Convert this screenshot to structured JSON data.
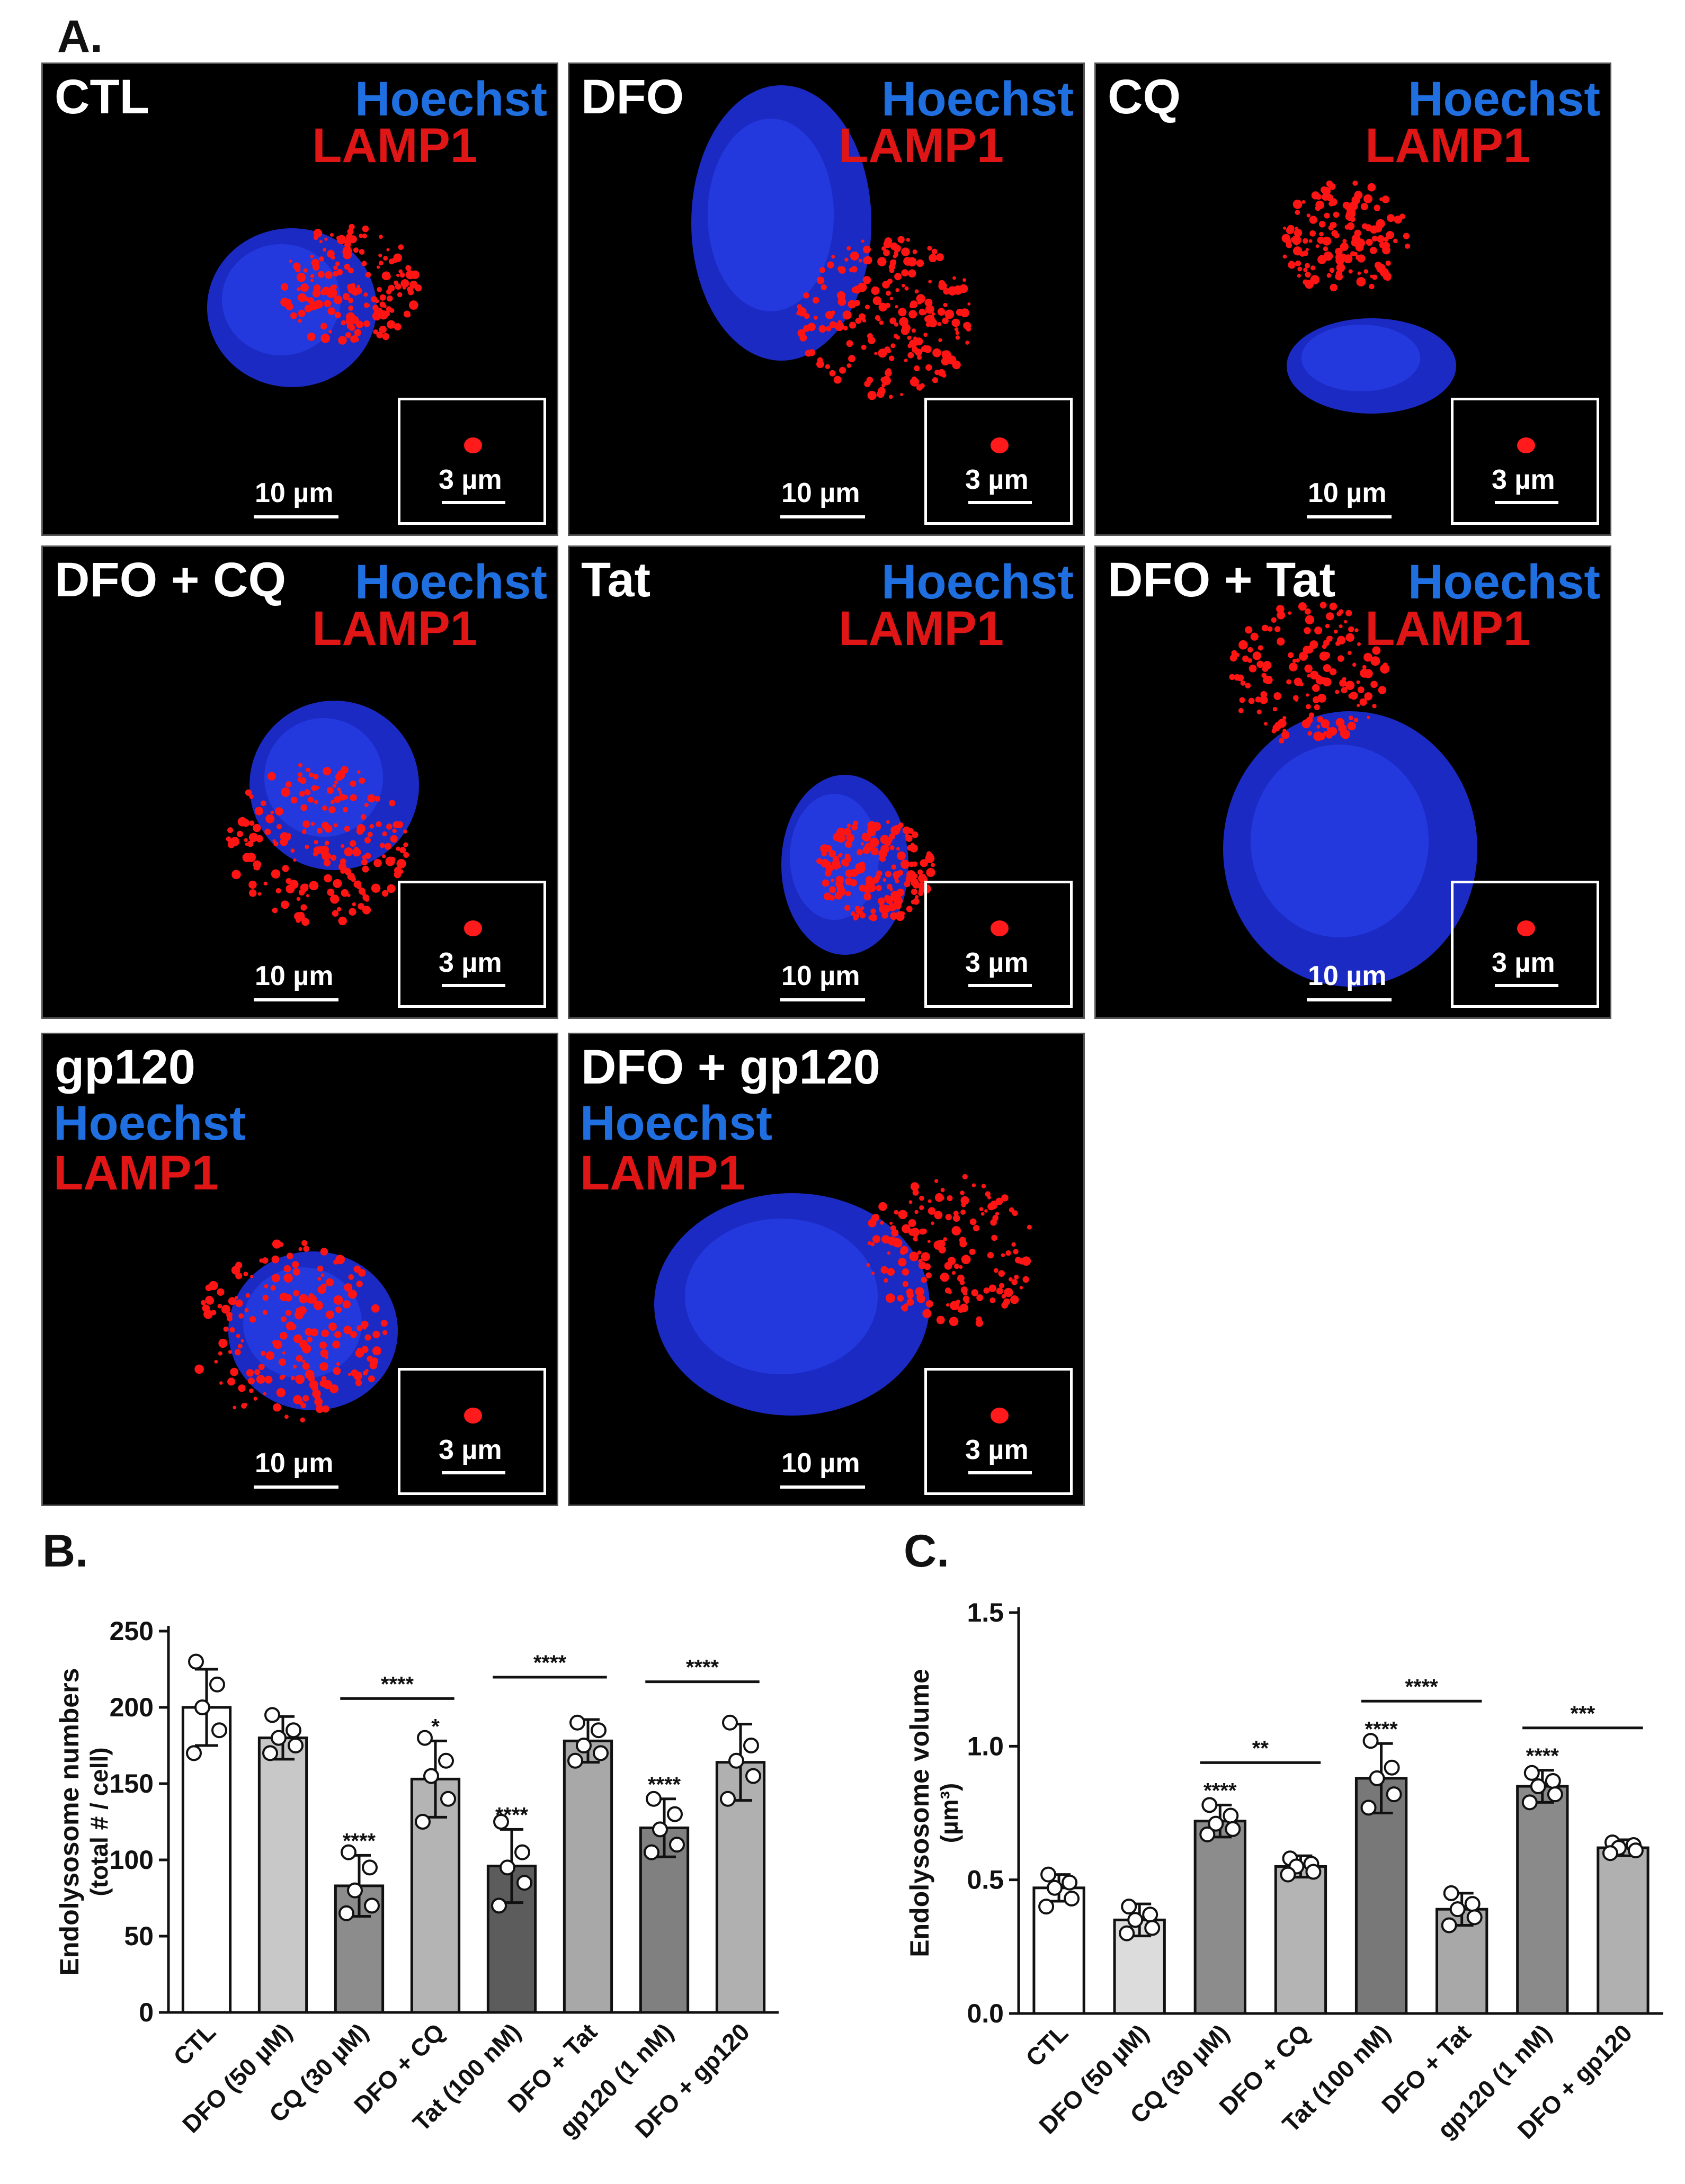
{
  "panel_letters": {
    "a": "A.",
    "b": "B.",
    "c": "C."
  },
  "micrographs": [
    {
      "title": "CTL",
      "stain_top": "Hoechst",
      "stain_bottom": "LAMP1",
      "scale_main": "10 µm",
      "scale_inset": "3 µm"
    },
    {
      "title": "DFO",
      "stain_top": "Hoechst",
      "stain_bottom": "LAMP1",
      "scale_main": "10 µm",
      "scale_inset": "3 µm"
    },
    {
      "title": "CQ",
      "stain_top": "Hoechst",
      "stain_bottom": "LAMP1",
      "scale_main": "10 µm",
      "scale_inset": "3 µm"
    },
    {
      "title": "DFO + CQ",
      "stain_top": "Hoechst",
      "stain_bottom": "LAMP1",
      "scale_main": "10 µm",
      "scale_inset": "3 µm"
    },
    {
      "title": "Tat",
      "stain_top": "Hoechst",
      "stain_bottom": "LAMP1",
      "scale_main": "10 µm",
      "scale_inset": "3 µm"
    },
    {
      "title": "DFO + Tat",
      "stain_top": "Hoechst",
      "stain_bottom": "LAMP1",
      "scale_main": "10 µm",
      "scale_inset": "3 µm"
    },
    {
      "title": "gp120",
      "stain_top": "Hoechst",
      "stain_bottom": "LAMP1",
      "scale_main": "10 µm",
      "scale_inset": "3 µm"
    },
    {
      "title": "DFO + gp120",
      "stain_top": "Hoechst",
      "stain_bottom": "LAMP1",
      "scale_main": "10 µm",
      "scale_inset": "3 µm"
    }
  ],
  "colors": {
    "nucleus": "#1e2fd8",
    "lamp1": "#ff1414",
    "bar_white": "#ffffff",
    "bar_light": "#c8c8c8",
    "bar_mid": "#8c8c8c",
    "bar_dark": "#5c5c5c"
  },
  "chart_data": [
    {
      "type": "bar",
      "ylabel": "Endolysosome numbers",
      "ylabel2": "(total # / cell)",
      "ylim": [
        0,
        250
      ],
      "yticks": [
        "0",
        "50",
        "100",
        "150",
        "200",
        "250"
      ],
      "categories": [
        "CTL",
        "DFO (50 µM)",
        "CQ (30 µM)",
        "DFO + CQ",
        "Tat (100 nM)",
        "DFO + Tat",
        "gp120 (1 nM)",
        "DFO + gp120"
      ],
      "values": [
        200,
        180,
        83,
        153,
        96,
        178,
        121,
        164
      ],
      "errors": [
        25,
        14,
        20,
        25,
        24,
        14,
        19,
        25
      ],
      "bar_colors": [
        "#ffffff",
        "#c8c8c8",
        "#8c8c8c",
        "#b4b4b4",
        "#5c5c5c",
        "#a8a8a8",
        "#808080",
        "#b0b0b0"
      ],
      "points": [
        [
          230,
          215,
          200,
          185,
          170
        ],
        [
          195,
          185,
          180,
          175,
          170
        ],
        [
          105,
          95,
          80,
          70,
          65
        ],
        [
          180,
          165,
          155,
          140,
          125
        ],
        [
          125,
          105,
          95,
          85,
          70
        ],
        [
          190,
          185,
          175,
          170,
          165
        ],
        [
          140,
          130,
          120,
          110,
          105
        ],
        [
          190,
          175,
          165,
          155,
          140
        ]
      ],
      "star_labels": [
        "",
        "",
        "****",
        "*",
        "****",
        "",
        "****",
        ""
      ],
      "brackets": [
        {
          "from": 2,
          "to": 3,
          "label": "****"
        },
        {
          "from": 4,
          "to": 5,
          "label": "****"
        },
        {
          "from": 6,
          "to": 7,
          "label": "****"
        }
      ]
    },
    {
      "type": "bar",
      "ylabel": "Endolysosome volume",
      "ylabel2": "(µm³)",
      "ylim": [
        0,
        1.5
      ],
      "yticks": [
        "0.0",
        "0.5",
        "1.0",
        "1.5"
      ],
      "categories": [
        "CTL",
        "DFO (50 µM)",
        "CQ (30 µM)",
        "DFO + CQ",
        "Tat (100 nM)",
        "DFO + Tat",
        "gp120 (1 nM)",
        "DFO + gp120"
      ],
      "values": [
        0.47,
        0.35,
        0.72,
        0.55,
        0.88,
        0.39,
        0.85,
        0.62
      ],
      "errors": [
        0.05,
        0.06,
        0.06,
        0.04,
        0.13,
        0.06,
        0.06,
        0.03
      ],
      "bar_colors": [
        "#ffffff",
        "#dcdcdc",
        "#8c8c8c",
        "#b4b4b4",
        "#787878",
        "#a8a8a8",
        "#8a8a8a",
        "#b0b0b0"
      ],
      "points": [
        [
          0.52,
          0.49,
          0.47,
          0.43,
          0.4
        ],
        [
          0.4,
          0.37,
          0.35,
          0.32,
          0.3
        ],
        [
          0.78,
          0.74,
          0.71,
          0.69,
          0.67
        ],
        [
          0.58,
          0.56,
          0.55,
          0.53,
          0.52
        ],
        [
          1.02,
          0.92,
          0.88,
          0.82,
          0.77
        ],
        [
          0.45,
          0.41,
          0.39,
          0.36,
          0.33
        ],
        [
          0.9,
          0.87,
          0.85,
          0.82,
          0.79
        ],
        [
          0.64,
          0.63,
          0.62,
          0.61,
          0.6
        ]
      ],
      "star_labels": [
        "",
        "",
        "****",
        "",
        "****",
        "",
        "****",
        ""
      ],
      "brackets": [
        {
          "from": 2,
          "to": 3,
          "label": "**"
        },
        {
          "from": 4,
          "to": 5,
          "label": "****"
        },
        {
          "from": 6,
          "to": 7,
          "label": "***"
        }
      ]
    }
  ]
}
